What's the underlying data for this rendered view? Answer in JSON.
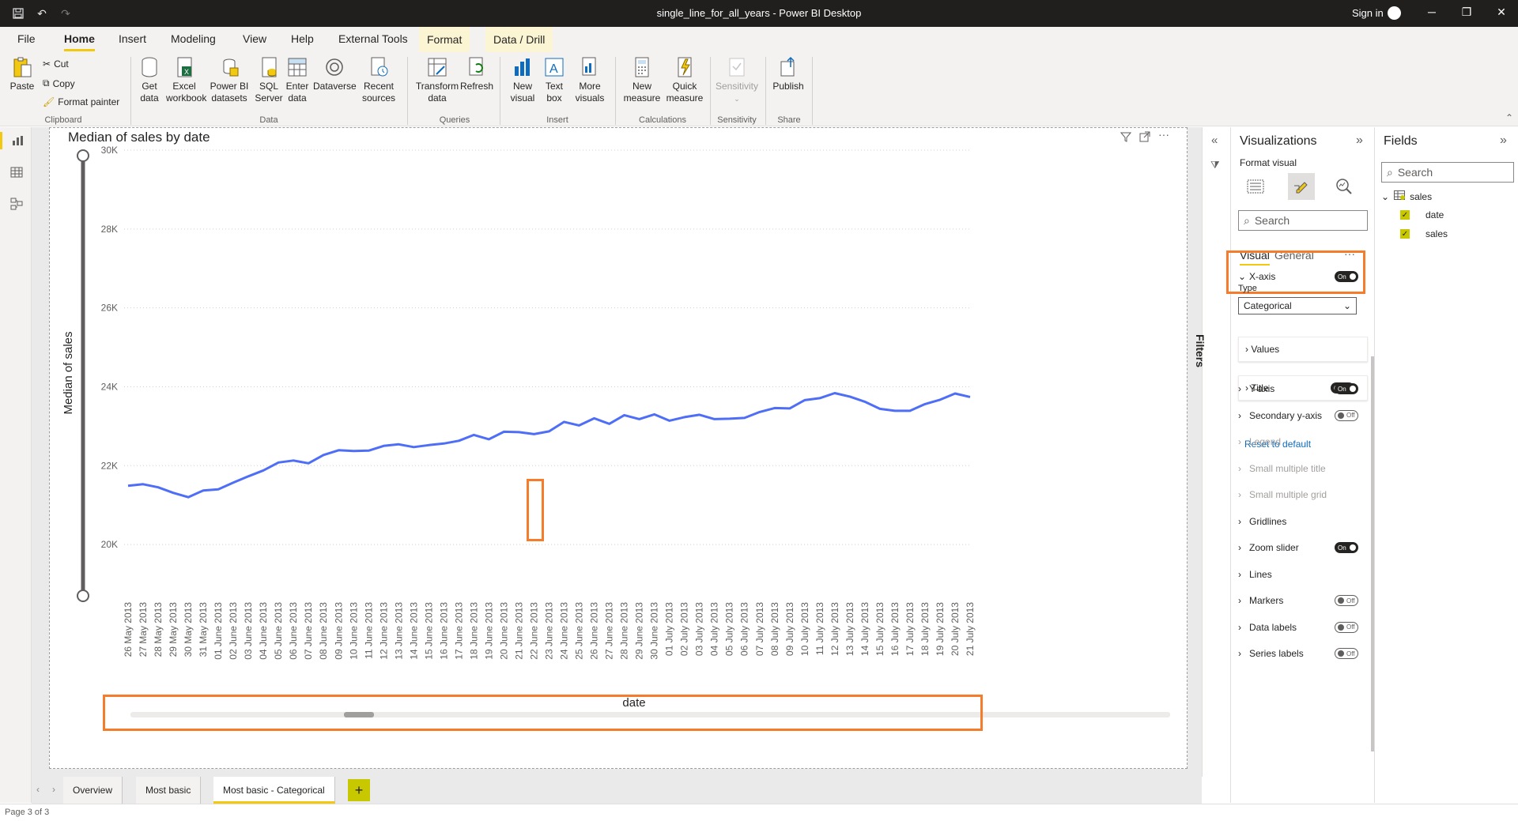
{
  "window": {
    "title": "single_line_for_all_years - Power BI Desktop",
    "sign_in": "Sign in"
  },
  "ribbon_tabs": [
    "File",
    "Home",
    "Insert",
    "Modeling",
    "View",
    "Help",
    "External Tools",
    "Format",
    "Data / Drill"
  ],
  "ribbon": {
    "clipboard": {
      "paste": "Paste",
      "cut": "Cut",
      "copy": "Copy",
      "format_painter": "Format painter",
      "group": "Clipboard"
    },
    "data": {
      "get_data": "Get data",
      "excel": "Excel workbook",
      "pbi_datasets": "Power BI datasets",
      "sql": "SQL Server",
      "enter_data": "Enter data",
      "dataverse": "Dataverse",
      "recent": "Recent sources",
      "group": "Data"
    },
    "queries": {
      "transform": "Transform data",
      "refresh": "Refresh",
      "group": "Queries"
    },
    "insert": {
      "new_visual": "New visual",
      "text_box": "Text box",
      "more_visuals": "More visuals",
      "group": "Insert"
    },
    "calculations": {
      "new_measure": "New measure",
      "quick_measure": "Quick measure",
      "group": "Calculations"
    },
    "sensitivity": {
      "label": "Sensitivity",
      "group": "Sensitivity"
    },
    "share": {
      "publish": "Publish",
      "group": "Share"
    }
  },
  "chart_data": {
    "type": "line",
    "title": "Median of sales by date",
    "xlabel": "date",
    "ylabel": "Median of sales",
    "ylim": [
      18700,
      30000
    ],
    "y_ticks": [
      "30K",
      "28K",
      "26K",
      "24K",
      "22K",
      "20K"
    ],
    "y_tick_values": [
      30000,
      28000,
      26000,
      24000,
      22000,
      20000
    ],
    "color": "#4f6ef7",
    "categories": [
      "26 May 2013",
      "27 May 2013",
      "28 May 2013",
      "29 May 2013",
      "30 May 2013",
      "31 May 2013",
      "01 June 2013",
      "02 June 2013",
      "03 June 2013",
      "04 June 2013",
      "05 June 2013",
      "06 June 2013",
      "07 June 2013",
      "08 June 2013",
      "09 June 2013",
      "10 June 2013",
      "11 June 2013",
      "12 June 2013",
      "13 June 2013",
      "14 June 2013",
      "15 June 2013",
      "16 June 2013",
      "17 June 2013",
      "18 June 2013",
      "19 June 2013",
      "20 June 2013",
      "21 June 2013",
      "22 June 2013",
      "23 June 2013",
      "24 June 2013",
      "25 June 2013",
      "26 June 2013",
      "27 June 2013",
      "28 June 2013",
      "29 June 2013",
      "30 June 2013",
      "01 July 2013",
      "02 July 2013",
      "03 July 2013",
      "04 July 2013",
      "05 July 2013",
      "06 July 2013",
      "07 July 2013",
      "08 July 2013",
      "09 July 2013",
      "10 July 2013",
      "11 July 2013",
      "12 July 2013",
      "13 July 2013",
      "14 July 2013",
      "15 July 2013",
      "16 July 2013",
      "17 July 2013",
      "18 July 2013",
      "19 July 2013",
      "20 July 2013",
      "21 July 2013"
    ],
    "values": [
      21490,
      21530,
      21450,
      21310,
      21200,
      21370,
      21400,
      21570,
      21730,
      21880,
      22080,
      22130,
      22060,
      22270,
      22390,
      22370,
      22380,
      22500,
      22540,
      22470,
      22520,
      22560,
      22630,
      22780,
      22670,
      22860,
      22850,
      22800,
      22870,
      23110,
      23020,
      23200,
      23060,
      23280,
      23180,
      23300,
      23140,
      23230,
      23290,
      23180,
      23190,
      23210,
      23360,
      23460,
      23450,
      23660,
      23710,
      23840,
      23750,
      23620,
      23440,
      23390,
      23390,
      23560,
      23670,
      23830,
      23740
    ],
    "highlighted_category": "22 June 2013"
  },
  "filters_label": "Filters",
  "viz_pane": {
    "title": "Visualizations",
    "format_visual": "Format visual",
    "search_placeholder": "Search",
    "tabs": [
      "Visual",
      "General"
    ],
    "more": "···",
    "x_axis": {
      "label": "X-axis",
      "toggle": "On",
      "type_label": "Type",
      "type_value": "Categorical"
    },
    "values": "Values",
    "title_card": {
      "label": "Title",
      "toggle": "On"
    },
    "reset": "Reset to default",
    "sections": [
      {
        "label": "Y-axis",
        "toggle": "On",
        "disabled": false
      },
      {
        "label": "Secondary y-axis",
        "toggle": "Off",
        "disabled": false
      },
      {
        "label": "Legend",
        "toggle": "",
        "disabled": true
      },
      {
        "label": "Small multiple title",
        "toggle": "",
        "disabled": true
      },
      {
        "label": "Small multiple grid",
        "toggle": "",
        "disabled": true
      },
      {
        "label": "Gridlines",
        "toggle": "",
        "disabled": false
      },
      {
        "label": "Zoom slider",
        "toggle": "On",
        "disabled": false
      },
      {
        "label": "Lines",
        "toggle": "",
        "disabled": false
      },
      {
        "label": "Markers",
        "toggle": "Off",
        "disabled": false
      },
      {
        "label": "Data labels",
        "toggle": "Off",
        "disabled": false
      },
      {
        "label": "Series labels",
        "toggle": "Off",
        "disabled": false
      }
    ]
  },
  "fields_pane": {
    "title": "Fields",
    "search_placeholder": "Search",
    "table": "sales",
    "fields": [
      "date",
      "sales"
    ]
  },
  "page_tabs": [
    "Overview",
    "Most basic",
    "Most basic - Categorical"
  ],
  "active_page": "Most basic - Categorical",
  "status": "Page 3 of 3"
}
